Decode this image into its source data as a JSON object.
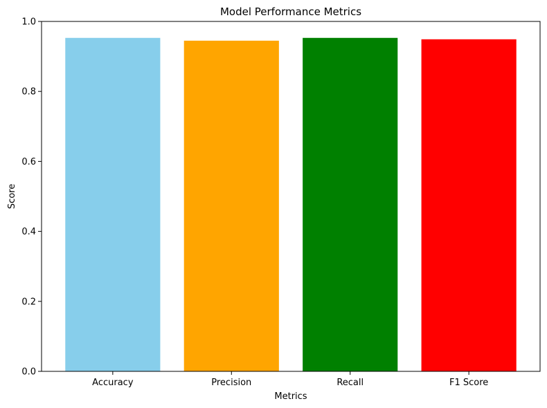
{
  "chart_data": {
    "type": "bar",
    "title": "Model Performance Metrics",
    "xlabel": "Metrics",
    "ylabel": "Score",
    "categories": [
      "Accuracy",
      "Precision",
      "Recall",
      "F1 Score"
    ],
    "values": [
      0.953,
      0.945,
      0.953,
      0.949
    ],
    "colors": [
      "#87CEEB",
      "#FFA500",
      "#008000",
      "#FF0000"
    ],
    "ylim": [
      0,
      1.0
    ],
    "yticks": [
      0.0,
      0.2,
      0.4,
      0.6,
      0.8,
      1.0
    ],
    "ytick_labels": [
      "0.0",
      "0.2",
      "0.4",
      "0.6",
      "0.8",
      "1.0"
    ],
    "grid": false,
    "legend": "none"
  }
}
